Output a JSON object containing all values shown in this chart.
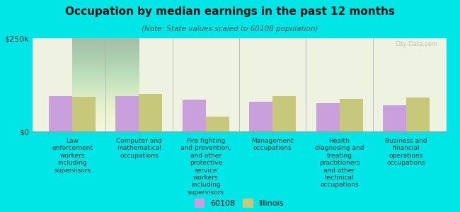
{
  "title": "Occupation by median earnings in the past 12 months",
  "subtitle": "(Note: State values scaled to 60108 population)",
  "background_color": "#00e5e5",
  "plot_bg_start": "#f5f5dc",
  "plot_bg_end": "#e8f0d8",
  "categories": [
    "Law\nenforcement\nworkers\nincluding\nsupervisors",
    "Computer and\nmathematical\noccupations",
    "Fire fighting\nand prevention,\nand other\nprotective\nservice\nworkers\nincluding\nsupervisors",
    "Management\noccupations",
    "Health\ndiagnosing and\ntreating\npractitioners\nand other\ntechnical\noccupations",
    "Business and\nfinancial\noperations\noccupations"
  ],
  "values_60108": [
    95000,
    95000,
    85000,
    80000,
    75000,
    70000
  ],
  "values_illinois": [
    92000,
    100000,
    40000,
    95000,
    88000,
    90000
  ],
  "color_60108": "#c9a0dc",
  "color_illinois": "#c8c87a",
  "ylim": [
    0,
    250000
  ],
  "yticks": [
    0,
    250000
  ],
  "ytick_labels": [
    "$0",
    "$250k"
  ],
  "legend_60108": "60108",
  "legend_illinois": "Illinois",
  "watermark": "City-Data.com"
}
